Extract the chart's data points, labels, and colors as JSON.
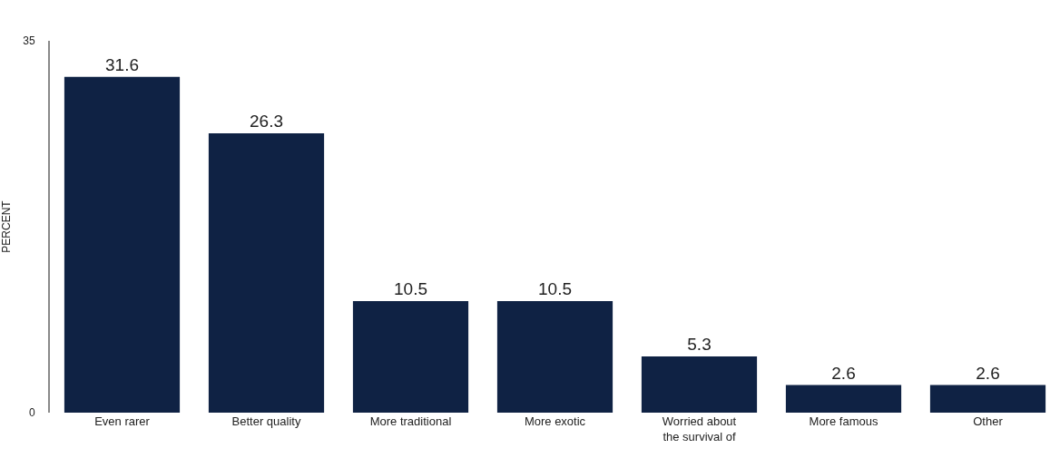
{
  "chart_data": {
    "type": "bar",
    "ylabel": "PERCENT",
    "categories": [
      "Even rarer",
      "Better quality",
      "More traditional",
      "More exotic",
      "Worried about the survival of",
      "More famous",
      "Other"
    ],
    "values": [
      31.6,
      26.3,
      10.5,
      10.5,
      5.3,
      2.6,
      2.6
    ],
    "color": "#0f2244",
    "data_labels": true,
    "ylim": [
      0,
      35
    ],
    "yticks": [
      0,
      35
    ]
  }
}
